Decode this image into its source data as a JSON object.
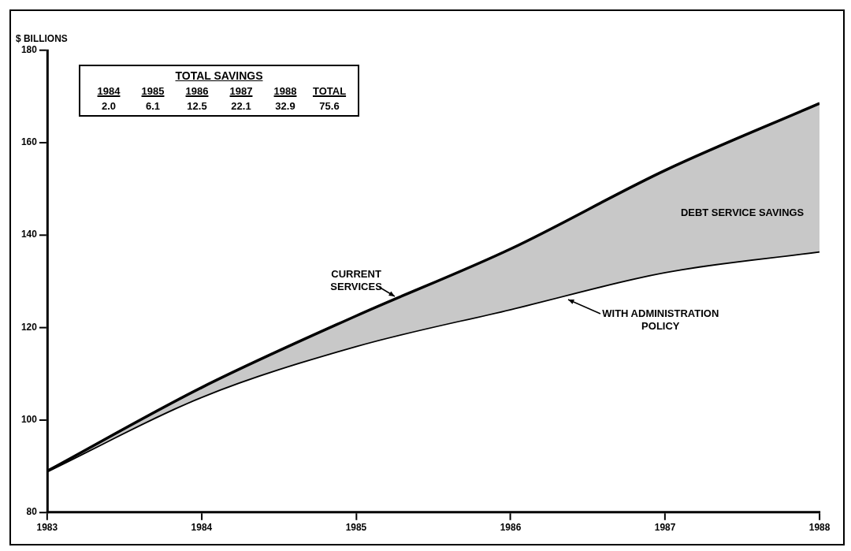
{
  "chart_data": {
    "type": "line",
    "ylabel": "$ BILLIONS",
    "x": [
      1983,
      1984,
      1985,
      1986,
      1987,
      1988
    ],
    "series": [
      {
        "name": "CURRENT SERVICES",
        "color": "#000000",
        "values": [
          88.9,
          107,
          122.5,
          137,
          154,
          168.5
        ]
      },
      {
        "name": "WITH ADMINISTRATION POLICY",
        "color": "#000000",
        "values": [
          88.9,
          105,
          116,
          124,
          132,
          136.5
        ]
      }
    ],
    "xlim": [
      1983,
      1988
    ],
    "xticks": [
      1983,
      1984,
      1985,
      1986,
      1987,
      1988
    ],
    "ylim": [
      80,
      180
    ],
    "yticks": [
      80,
      100,
      120,
      140,
      160,
      180
    ],
    "grid": false,
    "legend": false,
    "marker": "none",
    "line_style": "solid",
    "annotations": [
      "DEBT SERVICE SAVINGS",
      "TOTAL SAVINGS",
      "1984",
      "1985",
      "1986",
      "1987",
      "1988",
      "TOTAL",
      "2.0",
      "6.1",
      "12.5",
      "22.1",
      "32.9",
      "75.6"
    ]
  }
}
